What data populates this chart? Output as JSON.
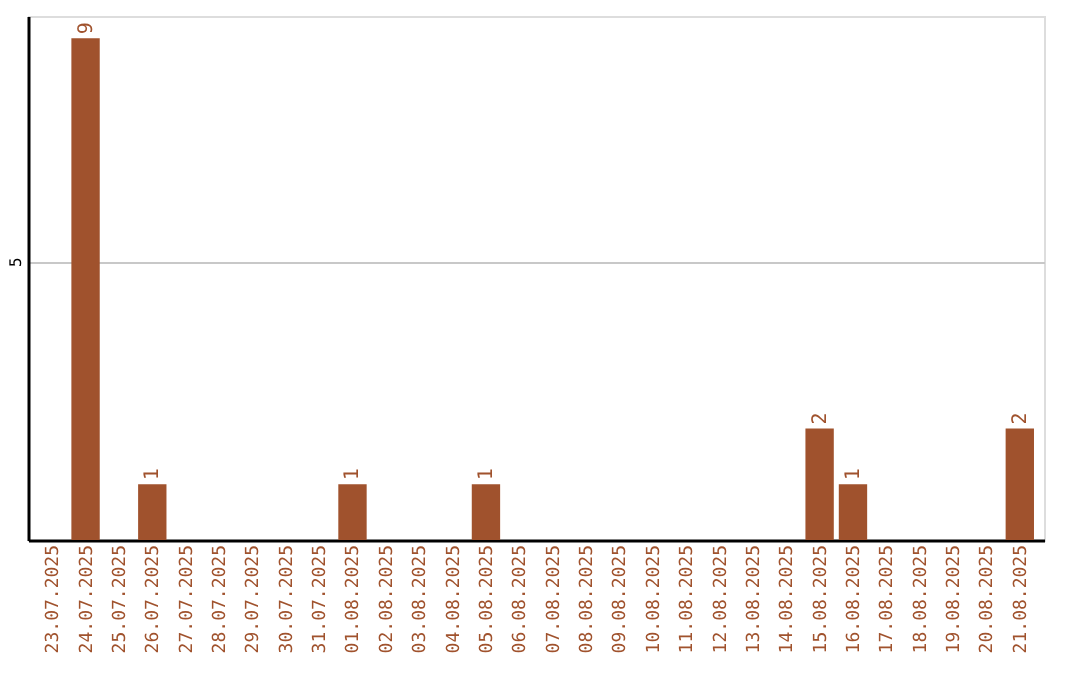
{
  "chart_data": {
    "type": "bar",
    "categories": [
      "23.07.2025",
      "24.07.2025",
      "25.07.2025",
      "26.07.2025",
      "27.07.2025",
      "28.07.2025",
      "29.07.2025",
      "30.07.2025",
      "31.07.2025",
      "01.08.2025",
      "02.08.2025",
      "03.08.2025",
      "04.08.2025",
      "05.08.2025",
      "06.08.2025",
      "07.08.2025",
      "08.08.2025",
      "09.08.2025",
      "10.08.2025",
      "11.08.2025",
      "12.08.2025",
      "13.08.2025",
      "14.08.2025",
      "15.08.2025",
      "16.08.2025",
      "17.08.2025",
      "18.08.2025",
      "19.08.2025",
      "20.08.2025",
      "21.08.2025"
    ],
    "values": [
      0,
      9,
      0,
      1,
      0,
      0,
      0,
      0,
      0,
      1,
      0,
      0,
      0,
      1,
      0,
      0,
      0,
      0,
      0,
      0,
      0,
      0,
      0,
      2,
      1,
      0,
      0,
      0,
      0,
      2
    ],
    "value_labels": [
      null,
      "9",
      null,
      "1",
      null,
      null,
      null,
      null,
      null,
      "1",
      null,
      null,
      null,
      "1",
      null,
      null,
      null,
      null,
      null,
      null,
      null,
      null,
      null,
      "2",
      "1",
      null,
      null,
      null,
      null,
      "2"
    ],
    "color": "#a0522d",
    "ylim": [
      0,
      9.4
    ],
    "yticks": [
      5
    ],
    "grid": "y"
  }
}
